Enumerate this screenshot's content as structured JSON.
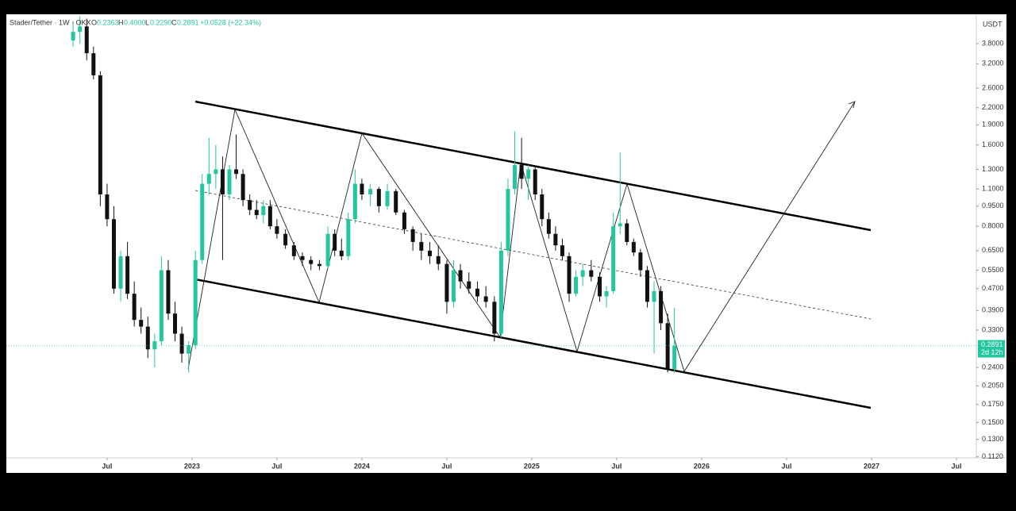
{
  "chart_data": {
    "type": "candlestick",
    "header": {
      "symbol": "Stader/Tether · 1W · OKX",
      "o_label": "O",
      "o": "0.2363",
      "h_label": "H",
      "h": "0.4000",
      "l_label": "L",
      "l": "0.2290",
      "c_label": "C",
      "c": "0.2891",
      "change": "+0.0528 (+22.34%)"
    },
    "currency": "USDT",
    "last_price": "0.2891",
    "countdown": "2d 12h",
    "log_scale": true,
    "up_color": "#22c79f",
    "down_color": "#111111",
    "xlim": [
      2021.907,
      2027.617
    ],
    "xticks": [
      {
        "value": 2022.5,
        "label": "Jul"
      },
      2023,
      {
        "value": 2023.5,
        "label": "Jul"
      },
      2024,
      {
        "value": 2024.5,
        "label": "Jul"
      },
      2025,
      {
        "value": 2025.5,
        "label": "Jul"
      },
      2026,
      {
        "value": 2026.5,
        "label": "Jul"
      },
      2027,
      {
        "value": 2027.5,
        "label": "Jul"
      }
    ],
    "ylim": [
      0.111,
      4.88
    ],
    "yticks": [
      {
        "value": 3.8,
        "label": "3.8000"
      },
      {
        "value": 3.2,
        "label": "3.2000"
      },
      {
        "value": 2.6,
        "label": "2.6000"
      },
      {
        "value": 2.2,
        "label": "2.2000"
      },
      {
        "value": 1.9,
        "label": "1.9000"
      },
      {
        "value": 1.6,
        "label": "1.6000"
      },
      {
        "value": 1.3,
        "label": "1.3000"
      },
      {
        "value": 1.1,
        "label": "1.1000"
      },
      {
        "value": 0.95,
        "label": "0.9500"
      },
      {
        "value": 0.8,
        "label": "0.8000"
      },
      {
        "value": 0.65,
        "label": "0.6500"
      },
      {
        "value": 0.55,
        "label": "0.5500"
      },
      {
        "value": 0.47,
        "label": "0.4700"
      },
      {
        "value": 0.39,
        "label": "0.3900"
      },
      {
        "value": 0.33,
        "label": "0.3300"
      },
      {
        "value": 0.24,
        "label": "0.2400"
      },
      {
        "value": 0.205,
        "label": "0.2050"
      },
      {
        "value": 0.175,
        "label": "0.1750"
      },
      {
        "value": 0.15,
        "label": "0.1500"
      },
      {
        "value": 0.13,
        "label": "0.1300"
      },
      {
        "value": 0.112,
        "label": "0.1120"
      }
    ],
    "x": [
      2022.3,
      2022.34,
      2022.38,
      2022.42,
      2022.46,
      2022.5,
      2022.54,
      2022.58,
      2022.62,
      2022.66,
      2022.7,
      2022.74,
      2022.78,
      2022.82,
      2022.86,
      2022.9,
      2022.94,
      2022.98,
      2023.02,
      2023.06,
      2023.1,
      2023.14,
      2023.18,
      2023.22,
      2023.26,
      2023.3,
      2023.34,
      2023.38,
      2023.42,
      2023.46,
      2023.5,
      2023.55,
      2023.6,
      2023.65,
      2023.7,
      2023.75,
      2023.8,
      2023.84,
      2023.88,
      2023.92,
      2023.96,
      2024.0,
      2024.05,
      2024.1,
      2024.15,
      2024.2,
      2024.25,
      2024.3,
      2024.35,
      2024.4,
      2024.45,
      2024.5,
      2024.54,
      2024.58,
      2024.63,
      2024.68,
      2024.73,
      2024.78,
      2024.82,
      2024.86,
      2024.9,
      2024.94,
      2024.98,
      2025.02,
      2025.06,
      2025.1,
      2025.14,
      2025.18,
      2025.22,
      2025.26,
      2025.3,
      2025.35,
      2025.4,
      2025.44,
      2025.48,
      2025.52,
      2025.56,
      2025.6,
      2025.64,
      2025.68,
      2025.72,
      2025.76,
      2025.8,
      2025.84
    ],
    "open": [
      3.9,
      4.2,
      4.4,
      3.5,
      2.9,
      1.05,
      0.85,
      0.47,
      0.62,
      0.45,
      0.36,
      0.34,
      0.28,
      0.3,
      0.55,
      0.38,
      0.32,
      0.27,
      0.29,
      0.6,
      1.15,
      1.25,
      1.3,
      1.05,
      1.3,
      1.25,
      1.0,
      0.92,
      0.88,
      0.95,
      0.8,
      0.75,
      0.68,
      0.62,
      0.6,
      0.58,
      0.57,
      0.75,
      0.65,
      0.62,
      0.85,
      1.15,
      1.05,
      1.1,
      0.95,
      1.08,
      0.9,
      0.78,
      0.7,
      0.65,
      0.62,
      0.58,
      0.42,
      0.55,
      0.5,
      0.47,
      0.44,
      0.42,
      0.32,
      0.65,
      1.1,
      1.35,
      1.2,
      1.3,
      1.05,
      0.85,
      0.75,
      0.68,
      0.62,
      0.45,
      0.52,
      0.55,
      0.52,
      0.44,
      0.46,
      0.8,
      0.82,
      0.7,
      0.64,
      0.55,
      0.42,
      0.46,
      0.35,
      0.2363
    ],
    "high": [
      4.6,
      4.8,
      4.7,
      3.7,
      3.0,
      1.15,
      0.95,
      0.65,
      0.7,
      0.5,
      0.4,
      0.37,
      0.32,
      0.62,
      0.6,
      0.42,
      0.34,
      0.3,
      0.65,
      1.25,
      1.7,
      1.6,
      1.45,
      1.35,
      1.75,
      1.3,
      1.05,
      1.0,
      1.0,
      1.0,
      0.85,
      0.78,
      0.7,
      0.64,
      0.62,
      0.6,
      0.8,
      0.78,
      0.72,
      0.9,
      1.3,
      1.2,
      1.15,
      1.12,
      1.15,
      1.1,
      0.92,
      0.8,
      0.75,
      0.7,
      0.68,
      0.6,
      0.6,
      0.58,
      0.54,
      0.5,
      0.48,
      0.44,
      0.7,
      1.2,
      1.8,
      1.7,
      1.35,
      1.32,
      1.1,
      0.9,
      0.8,
      0.72,
      0.64,
      0.55,
      0.58,
      0.6,
      0.54,
      0.48,
      0.9,
      1.5,
      0.85,
      0.72,
      0.66,
      0.57,
      0.5,
      0.48,
      0.38,
      0.4
    ],
    "low": [
      3.7,
      3.8,
      3.3,
      2.8,
      0.95,
      0.8,
      0.45,
      0.42,
      0.43,
      0.34,
      0.32,
      0.26,
      0.24,
      0.29,
      0.36,
      0.3,
      0.25,
      0.23,
      0.28,
      0.58,
      1.05,
      1.1,
      0.6,
      1.0,
      1.2,
      0.95,
      0.88,
      0.85,
      0.82,
      0.78,
      0.72,
      0.66,
      0.6,
      0.57,
      0.55,
      0.55,
      0.56,
      0.62,
      0.6,
      0.6,
      0.82,
      1.0,
      0.95,
      0.9,
      0.92,
      0.88,
      0.75,
      0.65,
      0.6,
      0.58,
      0.55,
      0.38,
      0.4,
      0.47,
      0.45,
      0.42,
      0.4,
      0.3,
      0.31,
      0.62,
      1.05,
      1.1,
      1.0,
      1.0,
      0.8,
      0.72,
      0.65,
      0.6,
      0.42,
      0.44,
      0.48,
      0.5,
      0.42,
      0.4,
      0.45,
      0.75,
      0.68,
      0.62,
      0.52,
      0.4,
      0.27,
      0.33,
      0.23,
      0.229
    ],
    "close": [
      4.2,
      4.4,
      3.5,
      2.9,
      1.05,
      0.85,
      0.47,
      0.62,
      0.45,
      0.36,
      0.34,
      0.28,
      0.3,
      0.55,
      0.38,
      0.32,
      0.27,
      0.29,
      0.6,
      1.15,
      1.25,
      1.3,
      1.05,
      1.3,
      1.25,
      1.0,
      0.92,
      0.88,
      0.95,
      0.8,
      0.75,
      0.68,
      0.62,
      0.6,
      0.58,
      0.57,
      0.75,
      0.65,
      0.62,
      0.85,
      1.15,
      1.05,
      1.1,
      0.95,
      1.08,
      0.9,
      0.78,
      0.7,
      0.65,
      0.62,
      0.58,
      0.42,
      0.55,
      0.5,
      0.47,
      0.44,
      0.42,
      0.32,
      0.65,
      1.1,
      1.35,
      1.2,
      1.3,
      1.05,
      0.85,
      0.75,
      0.68,
      0.62,
      0.45,
      0.52,
      0.55,
      0.52,
      0.44,
      0.46,
      0.8,
      0.82,
      0.7,
      0.64,
      0.55,
      0.42,
      0.46,
      0.35,
      0.2363,
      0.2891
    ]
  }
}
